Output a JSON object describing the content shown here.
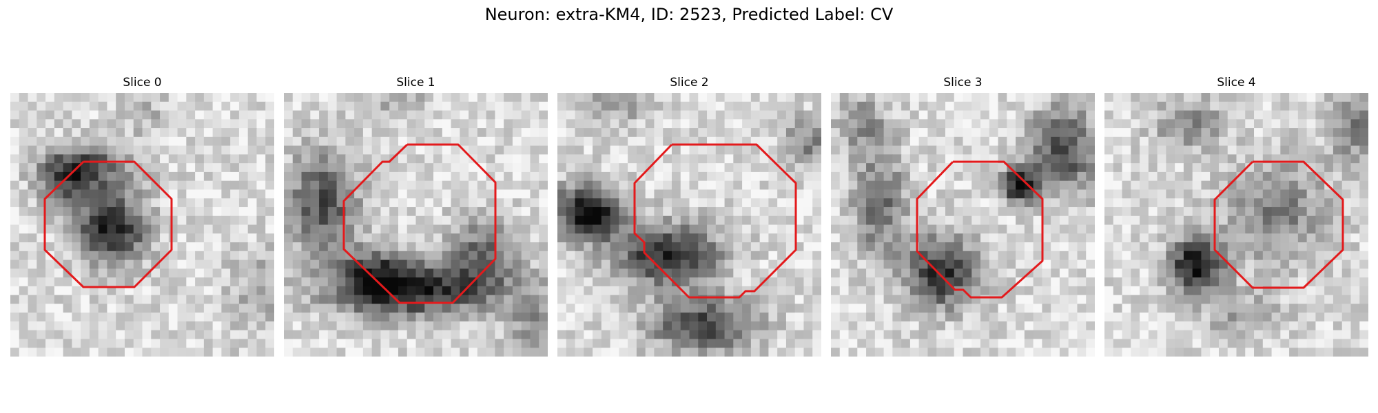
{
  "figure": {
    "title": "Neuron: extra-KM4, ID: 2523, Predicted Label: CV"
  },
  "colors": {
    "background": "#ffffff",
    "text": "#000000",
    "outline": "#e31a1c",
    "image_colormap": "grayscale"
  },
  "panels": [
    {
      "title": "Slice 0"
    },
    {
      "title": "Slice 1"
    },
    {
      "title": "Slice 2"
    },
    {
      "title": "Slice 3"
    },
    {
      "title": "Slice 4"
    }
  ]
}
